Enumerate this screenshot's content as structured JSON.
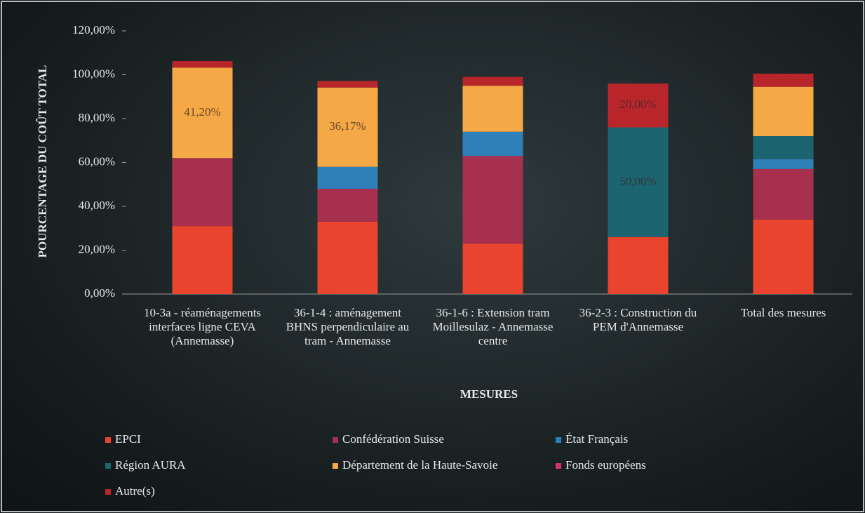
{
  "chart_data": {
    "type": "stacked_bar",
    "y_axis_label": "POURCENTAGE DU COÛT TOTAL",
    "x_axis_label": "MESURES",
    "categories": [
      "10-3a - réaménagements interfaces ligne CEVA (Annemasse)",
      "36-1-4 : aménagement BHNS perpendiculaire au tram - Annemasse",
      "36-1-6 : Extension tram Moillesulaz - Annemasse centre",
      "36-2-3 : Construction du PEM d'Annemasse",
      "Total des mesures"
    ],
    "ylim": [
      0,
      120
    ],
    "yticks": [
      {
        "value": 0,
        "label": "0,00%"
      },
      {
        "value": 20,
        "label": "20,00%"
      },
      {
        "value": 40,
        "label": "40,00%"
      },
      {
        "value": 60,
        "label": "60,00%"
      },
      {
        "value": 80,
        "label": "80,00%"
      },
      {
        "value": 100,
        "label": "100,00%"
      },
      {
        "value": 120,
        "label": "120,00%"
      }
    ],
    "legend_position": "bottom",
    "series": [
      {
        "name": "EPCI",
        "color": "#e8442e",
        "values": [
          31,
          33,
          23,
          26,
          34
        ]
      },
      {
        "name": "Confédération Suisse",
        "color": "#a8304f",
        "values": [
          31,
          15,
          40,
          null,
          23
        ],
        "value_labels": [
          null,
          null,
          null,
          null,
          null
        ]
      },
      {
        "name": "État Français",
        "color": "#2f7fb8",
        "values": [
          null,
          10,
          11,
          null,
          4.5
        ]
      },
      {
        "name": "Région AURA",
        "color": "#1c6470",
        "values": [
          null,
          null,
          null,
          50,
          10.5
        ],
        "value_labels": [
          null,
          null,
          null,
          "50,00%",
          null
        ]
      },
      {
        "name": "Département de la Haute-Savoie",
        "color": "#f5a846",
        "values": [
          41.2,
          36.17,
          21,
          null,
          22.5
        ],
        "value_labels": [
          "41,20%",
          "36,17%",
          null,
          null,
          null
        ]
      },
      {
        "name": "Fonds européens",
        "color": "#d8336e",
        "values": [
          null,
          null,
          null,
          null,
          null
        ]
      },
      {
        "name": "Autre(s)",
        "color": "#b8262c",
        "values": [
          3,
          3,
          4,
          20,
          6
        ],
        "value_labels": [
          null,
          null,
          null,
          "20,00%",
          null
        ]
      }
    ]
  }
}
